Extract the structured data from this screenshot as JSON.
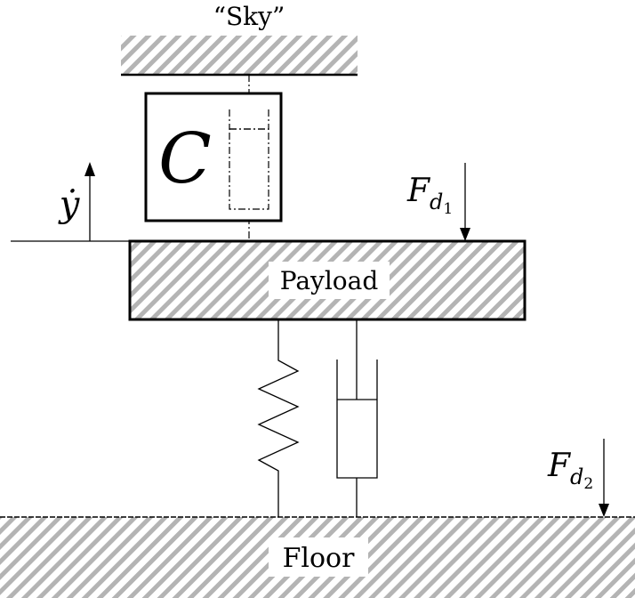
{
  "labels": {
    "sky": "“Sky”",
    "controller": "C",
    "payload": "Payload",
    "floor": "Floor",
    "velocity": "ẏ",
    "force_payload_main": "F",
    "force_payload_sub_letter": "d",
    "force_payload_sub_num": "1",
    "force_floor_main": "F",
    "force_floor_sub_letter": "d",
    "force_floor_sub_num": "2"
  },
  "colors": {
    "hatch": "#b4b4b4",
    "line": "#000000",
    "background": "#ffffff"
  }
}
